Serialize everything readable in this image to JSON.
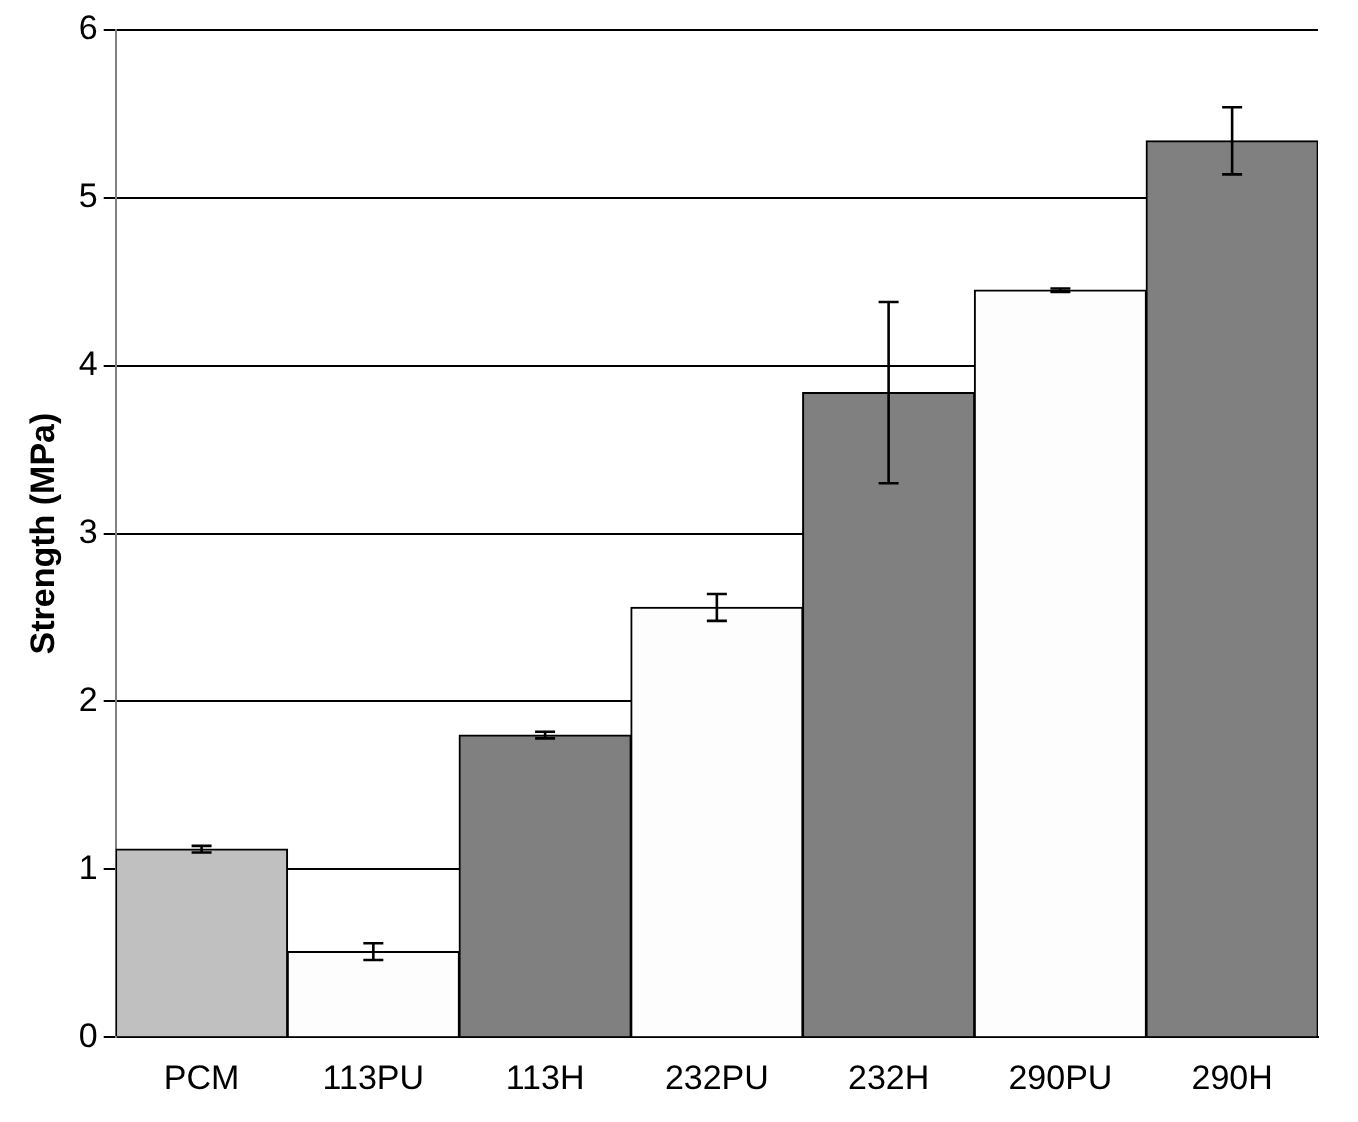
{
  "chart_data": {
    "type": "bar",
    "ylabel": "Strength (MPa)",
    "categories": [
      "PCM",
      "113PU",
      "113H",
      "232PU",
      "232H",
      "290PU",
      "290H"
    ],
    "values": [
      1.12,
      0.51,
      1.8,
      2.56,
      3.84,
      4.45,
      5.34
    ],
    "errors": [
      0.02,
      0.05,
      0.02,
      0.08,
      0.54,
      0.01,
      0.2
    ],
    "colors": [
      "#c0c0c0",
      "#fdfdfd",
      "#808080",
      "#fdfdfd",
      "#808080",
      "#fdfdfd",
      "#808080"
    ],
    "ylim": [
      0,
      6
    ],
    "yticks": [
      0,
      1,
      2,
      3,
      4,
      5,
      6
    ],
    "grid": "y"
  }
}
